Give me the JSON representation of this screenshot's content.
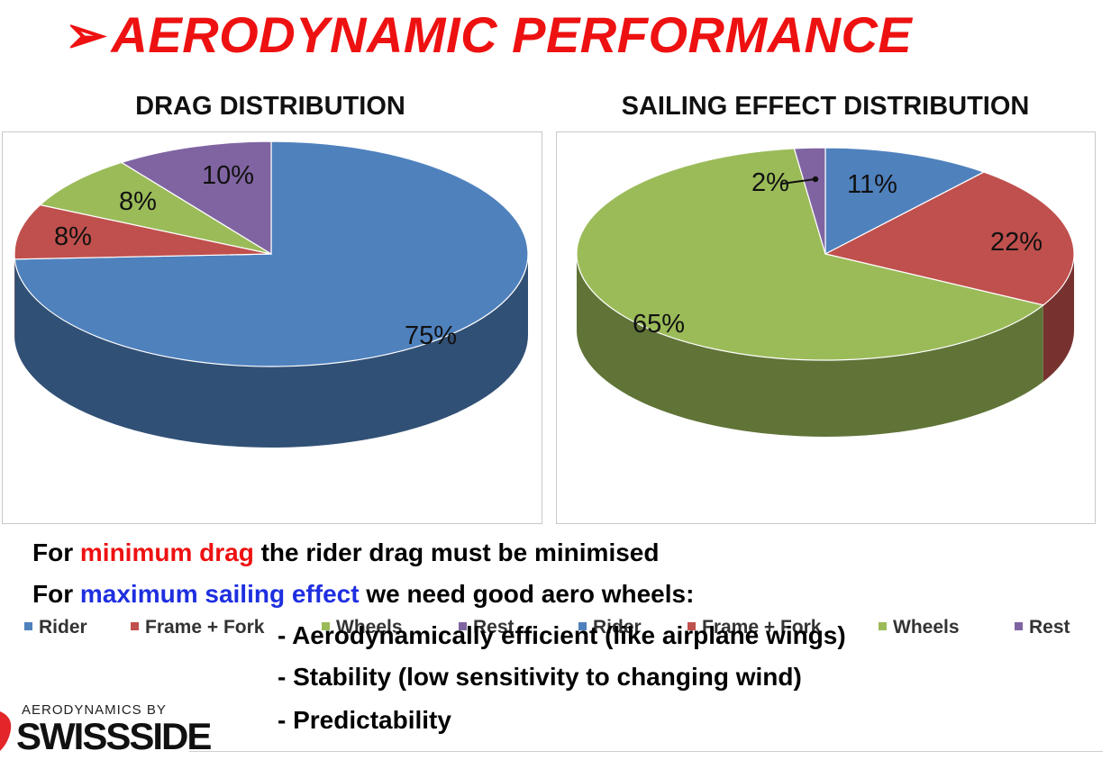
{
  "title": {
    "bullet": "➢",
    "text": "AERODYNAMIC PERFORMANCE"
  },
  "colors": {
    "rider": "#4f81bd",
    "frame": "#c0504d",
    "wheels": "#9bbb59",
    "rest": "#8064a2",
    "accent_red": "#ee1111",
    "accent_blue": "#1e2fe0"
  },
  "chart_data": [
    {
      "type": "pie",
      "title": "DRAG DISTRIBUTION",
      "categories": [
        "Rider",
        "Frame + Fork",
        "Wheels",
        "Rest"
      ],
      "values": [
        75,
        8,
        8,
        10
      ],
      "labels": [
        "75%",
        "8%",
        "8%",
        "10%"
      ],
      "legend": "bottom"
    },
    {
      "type": "pie",
      "title": "SAILING EFFECT DISTRIBUTION",
      "categories": [
        "Rider",
        "Frame + Fork",
        "Wheels",
        "Rest"
      ],
      "values": [
        11,
        22,
        65,
        2
      ],
      "labels": [
        "11%",
        "22%",
        "65%",
        "2%"
      ],
      "legend": "bottom"
    }
  ],
  "text": {
    "line1": {
      "a": "For ",
      "b": "minimum drag",
      "c": " the rider drag must be minimised"
    },
    "line2": {
      "a": "For ",
      "b": "maximum sailing effect",
      "c": " we need good aero wheels:"
    },
    "bullets": [
      "- Aerodynamically efficient (like airplane wings)",
      "- Stability (low sensitivity to changing wind)",
      "- Predictability"
    ]
  },
  "logo": {
    "small": "AERODYNAMICS BY",
    "big": "SWISSSIDE"
  }
}
